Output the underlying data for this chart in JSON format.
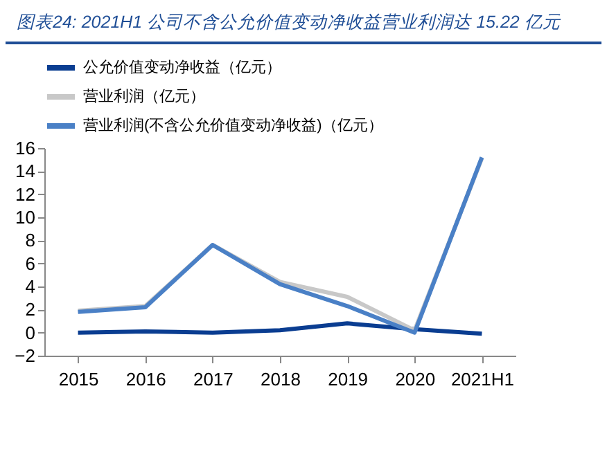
{
  "chart_data": {
    "type": "line",
    "title": "图表24:  2021H1 公司不含公允价值变动净收益营业利润达 15.22 亿元",
    "categories": [
      "2015",
      "2016",
      "2017",
      "2018",
      "2019",
      "2020",
      "2021H1"
    ],
    "series": [
      {
        "name": "公允价值变动净收益（亿元）",
        "color": "#0a3d91",
        "values": [
          0,
          0.1,
          0,
          0.2,
          0.8,
          0.3,
          -0.1
        ]
      },
      {
        "name": "营业利润（亿元）",
        "color": "#c8c8c8",
        "values": [
          1.9,
          2.3,
          7.6,
          4.4,
          3.1,
          0.2,
          15.1
        ]
      },
      {
        "name": "营业利润(不含公允价值变动净收益)（亿元）",
        "color": "#4a80c6",
        "values": [
          1.8,
          2.2,
          7.6,
          4.2,
          2.3,
          0,
          15.2
        ]
      }
    ],
    "ylim": [
      -2,
      16
    ],
    "yticks": [
      -2,
      0,
      2,
      4,
      6,
      8,
      10,
      12,
      14,
      16
    ],
    "grid": false,
    "legend": "top left",
    "marker": "none",
    "line_style": "solid"
  }
}
